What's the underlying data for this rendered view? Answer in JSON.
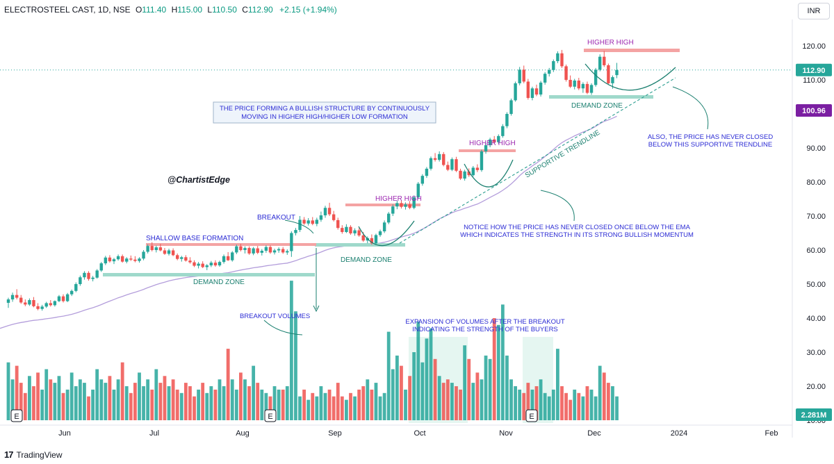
{
  "header": {
    "symbol": "ELECTROSTEEL CAST, 1D, NSE",
    "open_label": "O",
    "open": "111.40",
    "high_label": "H",
    "high": "115.00",
    "low_label": "L",
    "low": "110.50",
    "close_label": "C",
    "close": "112.90",
    "change": "+2.15 (+1.94%)"
  },
  "currency_button": "INR",
  "brand": {
    "logo": "17",
    "name": "TradingView"
  },
  "colors": {
    "up": "#26a69a",
    "down": "#ef5350",
    "ema": "#b39ddb",
    "annotation": "#2b2bd4",
    "purple_text": "#9c27b0",
    "zone": "#9fd9cb",
    "resistance": "#f4a3a3"
  },
  "icons": {
    "earnings_marker": "E",
    "logo": "tradingview-logo-icon"
  },
  "price_labels": {
    "last_price": "112.90",
    "ema_value": "100.96",
    "volume_value": "2.281M"
  },
  "annotations": {
    "title_box": [
      "THE PRICE FORMING A BULLISH STRUCTURE BY CONTINUOUSLY",
      "MOVING IN HIGHER HIGH/HIGHER LOW FORMATION"
    ],
    "watermark": "@ChartistEdge",
    "shallow_base": "SHALLOW BASE FORMATION",
    "breakout": "BREAKOUT",
    "demand_zone_1": "DEMAND ZONE",
    "demand_zone_2": "DEMAND ZONE",
    "demand_zone_3": "DEMAND ZONE",
    "higher_high_1": "HIGHER HIGH",
    "higher_high_2": "HIGHER HIGH",
    "higher_high_3": "HIGHER HIGH",
    "supportive_trendline": "SUPPORTIVE TRENDLINE",
    "breakout_volumes": "BREAKOUT VOLUMES",
    "expansion": [
      "EXPANSION OF VOLUMES AFTER THE BREAKOUT",
      "INDICATING THE STRENGTH OF THE BUYERS"
    ],
    "notice": [
      "NOTICE HOW THE PRICE HAS NEVER CLOSED ONCE BELOW THE EMA",
      "WHICH INDICATES THE STRENGTH IN ITS STRONG BULLISH MOMENTUM"
    ],
    "also": [
      "ALSO, THE PRICE HAS NEVER CLOSED",
      "BELOW THIS SUPPORTIVE TRENDLINE"
    ]
  },
  "chart_data": {
    "type": "candlestick",
    "instrument": "ELECTROSTEEL CAST",
    "timeframe": "1D",
    "exchange": "NSE",
    "x_labels": [
      "Jun",
      "Jul",
      "Aug",
      "Sep",
      "Oct",
      "Nov",
      "Dec",
      "2024",
      "Feb"
    ],
    "y_ticks": [
      "120.00",
      "110.00",
      "100.00",
      "90.00",
      "80.00",
      "70.00",
      "60.00",
      "50.00",
      "40.00",
      "30.00",
      "20.00",
      "10.00"
    ],
    "price_range": [
      10,
      125
    ],
    "volume_ticks_shared_axis": true,
    "ohlc_last": {
      "open": 111.4,
      "high": 115.0,
      "low": 110.5,
      "close": 112.9
    },
    "series": [
      {
        "name": "Price",
        "ohlc": [
          [
            44.5,
            46.0,
            43.0,
            45.5
          ],
          [
            45.5,
            47.5,
            44.8,
            46.8
          ],
          [
            46.8,
            48.5,
            45.5,
            46.0
          ],
          [
            46.0,
            46.8,
            44.2,
            44.6
          ],
          [
            44.6,
            45.5,
            43.5,
            44.0
          ],
          [
            44.0,
            45.8,
            43.6,
            45.3
          ],
          [
            45.3,
            46.2,
            43.2,
            43.5
          ],
          [
            43.5,
            44.4,
            42.3,
            42.7
          ],
          [
            42.7,
            43.9,
            42.2,
            43.4
          ],
          [
            43.4,
            44.8,
            43.0,
            44.4
          ],
          [
            44.4,
            45.3,
            43.4,
            43.8
          ],
          [
            43.8,
            45.2,
            43.4,
            45.0
          ],
          [
            45.0,
            46.8,
            44.7,
            46.4
          ],
          [
            46.4,
            47.0,
            44.6,
            45.0
          ],
          [
            45.0,
            47.4,
            44.7,
            47.0
          ],
          [
            47.0,
            48.4,
            46.5,
            48.0
          ],
          [
            48.0,
            50.5,
            47.6,
            50.0
          ],
          [
            50.0,
            52.5,
            49.5,
            52.0
          ],
          [
            52.0,
            53.8,
            51.3,
            53.3
          ],
          [
            53.3,
            53.8,
            51.0,
            51.5
          ],
          [
            51.5,
            52.4,
            50.8,
            51.9
          ],
          [
            51.9,
            54.4,
            51.6,
            54.0
          ],
          [
            54.0,
            56.5,
            53.6,
            56.1
          ],
          [
            56.1,
            58.3,
            55.6,
            57.8
          ],
          [
            57.8,
            58.5,
            56.3,
            56.7
          ],
          [
            56.7,
            57.7,
            55.9,
            57.3
          ],
          [
            57.3,
            58.7,
            56.9,
            58.2
          ],
          [
            58.2,
            58.7,
            56.3,
            56.6
          ],
          [
            56.6,
            57.9,
            56.1,
            57.5
          ],
          [
            57.5,
            58.4,
            56.8,
            57.2
          ],
          [
            57.2,
            58.2,
            56.4,
            56.8
          ],
          [
            56.8,
            57.9,
            56.3,
            57.5
          ],
          [
            57.5,
            60.0,
            57.0,
            59.5
          ],
          [
            59.5,
            61.7,
            59.0,
            61.2
          ],
          [
            61.2,
            62.3,
            59.6,
            60.0
          ],
          [
            60.0,
            61.3,
            59.3,
            60.8
          ],
          [
            60.8,
            61.8,
            59.6,
            59.9
          ],
          [
            59.9,
            60.6,
            58.6,
            58.9
          ],
          [
            58.9,
            60.4,
            58.4,
            59.9
          ],
          [
            59.9,
            60.5,
            58.2,
            58.5
          ],
          [
            58.5,
            59.0,
            57.0,
            57.4
          ],
          [
            57.4,
            58.3,
            56.6,
            57.9
          ],
          [
            57.9,
            58.5,
            56.6,
            56.9
          ],
          [
            56.9,
            57.9,
            56.0,
            56.4
          ],
          [
            56.4,
            57.0,
            55.0,
            55.4
          ],
          [
            55.4,
            56.5,
            54.6,
            56.0
          ],
          [
            56.0,
            56.7,
            54.7,
            55.0
          ],
          [
            55.0,
            55.9,
            54.1,
            55.5
          ],
          [
            55.5,
            56.8,
            55.0,
            56.3
          ],
          [
            56.3,
            57.0,
            55.1,
            55.5
          ],
          [
            55.5,
            56.9,
            55.1,
            56.5
          ],
          [
            56.5,
            58.7,
            56.0,
            58.2
          ],
          [
            58.2,
            59.4,
            56.8,
            57.0
          ],
          [
            57.0,
            59.7,
            56.6,
            59.3
          ],
          [
            59.3,
            61.6,
            58.8,
            61.1
          ],
          [
            61.1,
            61.8,
            59.6,
            60.0
          ],
          [
            60.0,
            61.1,
            59.0,
            60.6
          ],
          [
            60.6,
            61.1,
            58.6,
            59.0
          ],
          [
            59.0,
            60.9,
            58.5,
            60.5
          ],
          [
            60.5,
            61.2,
            58.8,
            59.2
          ],
          [
            59.2,
            60.3,
            58.4,
            59.8
          ],
          [
            59.8,
            61.4,
            59.2,
            60.9
          ],
          [
            60.9,
            61.4,
            58.9,
            59.3
          ],
          [
            59.3,
            60.4,
            58.7,
            59.9
          ],
          [
            59.9,
            60.8,
            59.2,
            60.3
          ],
          [
            60.3,
            60.9,
            58.9,
            59.3
          ],
          [
            59.3,
            60.2,
            58.6,
            59.7
          ],
          [
            59.7,
            65.5,
            58.0,
            65.0
          ],
          [
            65.0,
            66.5,
            64.3,
            65.9
          ],
          [
            65.9,
            70.0,
            65.3,
            68.9
          ],
          [
            68.9,
            69.7,
            67.4,
            67.8
          ],
          [
            67.8,
            69.4,
            67.2,
            68.7
          ],
          [
            68.7,
            69.7,
            67.3,
            67.7
          ],
          [
            67.7,
            69.5,
            67.0,
            68.9
          ],
          [
            68.9,
            71.3,
            68.3,
            70.2
          ],
          [
            70.2,
            73.0,
            69.5,
            72.4
          ],
          [
            72.4,
            73.9,
            70.0,
            70.5
          ],
          [
            70.5,
            71.5,
            68.4,
            68.8
          ],
          [
            68.8,
            69.5,
            66.0,
            66.5
          ],
          [
            66.5,
            67.3,
            64.8,
            65.3
          ],
          [
            65.3,
            67.6,
            65.0,
            66.8
          ],
          [
            66.8,
            67.3,
            64.5,
            64.9
          ],
          [
            64.9,
            66.4,
            64.2,
            65.8
          ],
          [
            65.8,
            66.4,
            63.9,
            64.3
          ],
          [
            64.3,
            65.3,
            62.4,
            62.8
          ],
          [
            62.8,
            64.0,
            62.0,
            63.5
          ],
          [
            63.5,
            64.6,
            61.6,
            62.0
          ],
          [
            62.0,
            64.8,
            61.6,
            64.4
          ],
          [
            64.4,
            66.0,
            63.9,
            65.5
          ],
          [
            65.5,
            68.7,
            65.0,
            68.1
          ],
          [
            68.1,
            71.2,
            67.6,
            70.7
          ],
          [
            70.7,
            73.4,
            70.0,
            72.8
          ],
          [
            72.8,
            74.5,
            72.0,
            73.8
          ],
          [
            73.8,
            74.5,
            72.2,
            72.7
          ],
          [
            72.7,
            74.0,
            71.9,
            73.4
          ],
          [
            73.4,
            74.4,
            72.0,
            72.4
          ],
          [
            72.4,
            76.0,
            72.0,
            75.5
          ],
          [
            75.5,
            80.0,
            75.0,
            79.5
          ],
          [
            79.5,
            82.3,
            78.9,
            81.8
          ],
          [
            81.8,
            84.4,
            81.2,
            83.9
          ],
          [
            83.9,
            87.5,
            83.4,
            87.0
          ],
          [
            87.0,
            88.5,
            86.0,
            86.5
          ],
          [
            86.5,
            89.0,
            86.0,
            88.2
          ],
          [
            88.2,
            88.8,
            84.6,
            85.0
          ],
          [
            85.0,
            86.0,
            83.2,
            83.6
          ],
          [
            83.6,
            87.2,
            83.2,
            86.7
          ],
          [
            86.7,
            87.4,
            82.9,
            83.3
          ],
          [
            83.3,
            83.9,
            80.6,
            81.0
          ],
          [
            81.0,
            83.6,
            80.4,
            83.1
          ],
          [
            83.1,
            84.0,
            81.5,
            82.0
          ],
          [
            82.0,
            84.7,
            81.6,
            84.2
          ],
          [
            84.2,
            85.2,
            82.9,
            83.5
          ],
          [
            83.5,
            89.5,
            83.0,
            89.0
          ],
          [
            89.0,
            91.5,
            88.3,
            90.8
          ],
          [
            90.8,
            93.0,
            90.2,
            92.5
          ],
          [
            92.5,
            93.5,
            91.2,
            91.7
          ],
          [
            91.7,
            94.0,
            91.2,
            93.5
          ],
          [
            93.5,
            97.0,
            93.0,
            96.4
          ],
          [
            96.4,
            100.5,
            95.8,
            100.0
          ],
          [
            100.0,
            104.5,
            99.5,
            104.0
          ],
          [
            104.0,
            109.5,
            103.6,
            109.0
          ],
          [
            109.0,
            113.8,
            108.4,
            113.0
          ],
          [
            113.0,
            114.2,
            109.0,
            109.5
          ],
          [
            109.5,
            110.3,
            104.2,
            104.7
          ],
          [
            104.7,
            108.0,
            104.0,
            107.5
          ],
          [
            107.5,
            108.6,
            105.2,
            105.7
          ],
          [
            105.7,
            109.7,
            105.1,
            109.2
          ],
          [
            109.2,
            112.3,
            108.6,
            111.8
          ],
          [
            111.8,
            113.5,
            111.0,
            112.9
          ],
          [
            112.9,
            116.0,
            112.3,
            115.5
          ],
          [
            115.5,
            118.4,
            114.9,
            117.8
          ],
          [
            117.8,
            118.8,
            113.5,
            114.0
          ],
          [
            114.0,
            114.5,
            109.5,
            110.0
          ],
          [
            110.0,
            111.3,
            107.6,
            108.0
          ],
          [
            108.0,
            110.3,
            107.2,
            109.8
          ],
          [
            109.8,
            110.6,
            107.0,
            107.5
          ],
          [
            107.5,
            109.3,
            106.2,
            108.8
          ],
          [
            108.8,
            109.5,
            105.8,
            106.2
          ],
          [
            106.2,
            109.0,
            105.6,
            108.5
          ],
          [
            108.5,
            113.5,
            108.0,
            113.0
          ],
          [
            113.0,
            117.5,
            112.5,
            116.8
          ],
          [
            116.8,
            118.5,
            113.8,
            114.3
          ],
          [
            114.3,
            114.8,
            108.6,
            109.0
          ],
          [
            109.0,
            111.3,
            107.4,
            110.8
          ],
          [
            111.4,
            115.0,
            110.5,
            112.9
          ]
        ]
      },
      {
        "name": "Volume",
        "values": [
          17,
          12,
          16,
          11,
          8,
          13,
          10,
          14,
          9,
          15,
          12,
          11,
          13,
          8,
          9,
          14,
          10,
          12,
          11,
          7,
          9,
          15,
          12,
          11,
          13,
          9,
          12,
          17,
          10,
          8,
          11,
          14,
          10,
          12,
          9,
          15,
          11,
          13,
          10,
          12,
          9,
          8,
          11,
          10,
          7,
          9,
          11,
          8,
          10,
          9,
          12,
          10,
          21,
          12,
          9,
          14,
          12,
          10,
          16,
          11,
          9,
          8,
          7,
          10,
          9,
          9,
          10,
          41,
          32,
          7,
          9,
          6,
          8,
          7,
          10,
          8,
          9,
          7,
          11,
          7,
          6,
          8,
          7,
          9,
          10,
          12,
          9,
          11,
          7,
          8,
          26,
          15,
          19,
          16,
          9,
          13,
          20,
          29,
          17,
          24,
          27,
          18,
          13,
          11,
          12,
          11,
          10,
          9,
          22,
          18,
          11,
          14,
          12,
          19,
          18,
          30,
          28,
          34,
          19,
          12,
          10,
          9,
          8,
          11,
          9,
          10,
          12,
          8,
          7,
          9,
          21,
          10,
          8,
          6,
          9,
          8,
          7,
          10,
          9,
          7,
          16,
          14,
          11,
          10,
          7
        ]
      },
      {
        "name": "EMA",
        "values": []
      }
    ]
  }
}
